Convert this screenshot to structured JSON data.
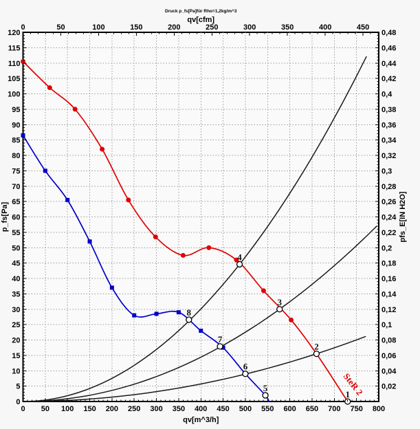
{
  "title": "Druck p_fs[Pa]für Rho=1,2kg/m^3",
  "colors": {
    "fan_step2": "#e00000",
    "fan_step1": "#0000cd",
    "system_curves": "#1a1a1a",
    "grid": "#9a9a9a",
    "axis": "#000000",
    "background": "#f7f7f7",
    "plot_background": "#fafafa"
  },
  "chart_data": {
    "type": "line",
    "title": "Druck p_fs[Pa]für Rho=1,2kg/m^3",
    "axes": {
      "top": {
        "label": "qv[cfm]",
        "min": 0,
        "max": 470,
        "tick_step": 50,
        "minor_step": 10,
        "tick_labels": [
          "0",
          "50",
          "100",
          "150",
          "200",
          "250",
          "300",
          "350",
          "400",
          "450"
        ]
      },
      "bottom": {
        "label": "qv[m^3/h]",
        "min": 0,
        "max": 800,
        "tick_step": 50,
        "minor_step": 10,
        "tick_labels": [
          "0",
          "50",
          "100",
          "150",
          "200",
          "250",
          "300",
          "350",
          "400",
          "450",
          "500",
          "550",
          "600",
          "650",
          "700",
          "750",
          "800"
        ]
      },
      "left": {
        "label": "p_fs[Pa]",
        "min": 0,
        "max": 120,
        "tick_step": 5,
        "minor_step": 1,
        "tick_labels": [
          "120",
          "115",
          "110",
          "105",
          "100",
          "95",
          "90",
          "85",
          "80",
          "75",
          "70",
          "65",
          "60",
          "55",
          "50",
          "45",
          "40",
          "35",
          "30",
          "25",
          "20",
          "15",
          "10",
          "5",
          "0"
        ]
      },
      "right": {
        "label": "pfs_E[IN H2O]",
        "min": 0,
        "max": 0.48,
        "tick_step": 0.02,
        "tick_labels": [
          "0,48",
          "0,46",
          "0,44",
          "0,42",
          "0,4",
          "0,38",
          "0,36",
          "0,34",
          "0,32",
          "0,3",
          "0,28",
          "0,26",
          "0,24",
          "0,22",
          "0,2",
          "0,18",
          "0,16",
          "0,14",
          "0,12",
          "0,1",
          "0,08",
          "0,06",
          "0,04",
          "0,02"
        ]
      }
    },
    "grid": {
      "on": true,
      "style": "dashed",
      "x_step_m3h": 50,
      "y_step_pa": 5
    },
    "series": [
      {
        "name": "fan-curve-step-2",
        "color": "#e00000",
        "marker": "dot",
        "width": 1.7,
        "points": [
          [
            0,
            110.5
          ],
          [
            60,
            102
          ],
          [
            117,
            95
          ],
          [
            178,
            82
          ],
          [
            237,
            65.5
          ],
          [
            298,
            53.5
          ],
          [
            360,
            47.5
          ],
          [
            418,
            50
          ],
          [
            480,
            46
          ],
          [
            541,
            36
          ],
          [
            603,
            26.5
          ],
          [
            660,
            15.5
          ],
          [
            730,
            0
          ]
        ],
        "markers_skip_last": 1,
        "label": {
          "text": "SteR 2",
          "color": "#e00000",
          "qv": 737,
          "p": 5.0,
          "angle_deg": 52
        }
      },
      {
        "name": "fan-curve-step-1",
        "color": "#0000cd",
        "marker": "square",
        "width": 1.7,
        "points": [
          [
            0,
            86.5
          ],
          [
            50,
            75
          ],
          [
            100,
            65.5
          ],
          [
            150,
            52
          ],
          [
            200,
            37
          ],
          [
            250,
            28
          ],
          [
            300,
            28.5
          ],
          [
            350,
            29
          ],
          [
            400,
            23
          ],
          [
            450,
            17.5
          ],
          [
            500,
            9
          ],
          [
            545,
            2
          ],
          [
            553,
            0
          ]
        ],
        "markers_skip_last": 1
      },
      {
        "name": "system-curve-high",
        "color": "#1a1a1a",
        "marker": "none",
        "width": 1.5,
        "parabola_k": 0.000188,
        "qv_end": 772
      },
      {
        "name": "system-curve-mid",
        "color": "#1a1a1a",
        "marker": "none",
        "width": 1.5,
        "parabola_k": 9.01e-05,
        "qv_end": 795
      },
      {
        "name": "system-curve-low",
        "color": "#1a1a1a",
        "marker": "none",
        "width": 1.5,
        "parabola_k": 3.56e-05,
        "qv_end": 770
      }
    ],
    "operating_points": [
      {
        "label": "1",
        "qv": 730,
        "p": 0
      },
      {
        "label": "2",
        "qv": 660,
        "p": 15.5
      },
      {
        "label": "3",
        "qv": 577,
        "p": 30
      },
      {
        "label": "4",
        "qv": 487,
        "p": 44.6
      },
      {
        "label": "5",
        "qv": 545,
        "p": 2
      },
      {
        "label": "6",
        "qv": 500,
        "p": 9
      },
      {
        "label": "7",
        "qv": 443,
        "p": 17.9
      },
      {
        "label": "8",
        "qv": 373,
        "p": 26.6
      }
    ],
    "cfm_to_m3h": 1.699115
  }
}
